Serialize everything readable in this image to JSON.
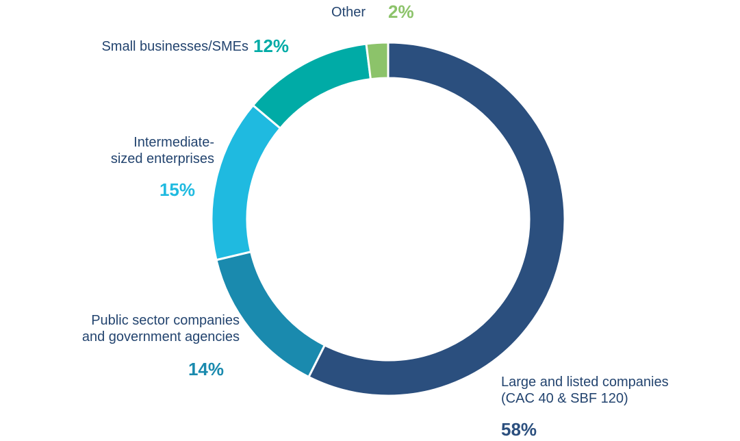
{
  "chart_data": {
    "type": "donut",
    "categories": [
      "Large and listed companies\n(CAC 40 & SBF 120)",
      "Public sector companies\nand government agencies",
      "Intermediate-\nsized enterprises",
      "Small businesses/SMEs",
      "Other"
    ],
    "values": [
      58,
      14,
      15,
      12,
      2
    ],
    "value_labels": [
      "58%",
      "14%",
      "15%",
      "12%",
      "2%"
    ],
    "colors": [
      "#2b4f7e",
      "#1a8aae",
      "#1fbae0",
      "#00aba6",
      "#8cc36a"
    ]
  }
}
